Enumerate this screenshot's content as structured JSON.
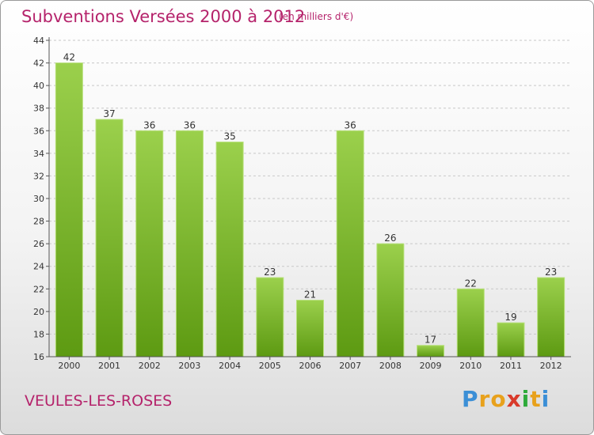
{
  "header": {
    "title": "Subventions Versées 2000 à 2012",
    "subtitle": "(en milliers d'€)"
  },
  "footer": {
    "commune": "VEULES-LES-ROSES",
    "logo_letters": [
      "P",
      "r",
      "o",
      "x",
      "i",
      "t",
      "i"
    ],
    "logo_colors": [
      "#3b8fd6",
      "#e8a11c",
      "#e8a11c",
      "#d93a2b",
      "#2eaa3a",
      "#e8a11c",
      "#3b8fd6"
    ]
  },
  "colors": {
    "text_accent": "#b5236b",
    "bar_top": "#9bd04c",
    "bar_bottom": "#5d9a12",
    "grid": "#c8c8c8"
  },
  "chart_data": {
    "type": "bar",
    "title": "Subventions Versées 2000 à 2012",
    "subtitle": "(en milliers d'€)",
    "categories": [
      "2000",
      "2001",
      "2002",
      "2003",
      "2004",
      "2005",
      "2006",
      "2007",
      "2008",
      "2009",
      "2010",
      "2011",
      "2012"
    ],
    "values": [
      42,
      37,
      36,
      36,
      35,
      23,
      21,
      36,
      26,
      17,
      22,
      19,
      23
    ],
    "ylim": [
      16,
      44
    ],
    "yticks": [
      16,
      18,
      20,
      22,
      24,
      26,
      28,
      30,
      32,
      34,
      36,
      38,
      40,
      42,
      44
    ],
    "grid": "horizontal dashed",
    "data_labels": true
  }
}
